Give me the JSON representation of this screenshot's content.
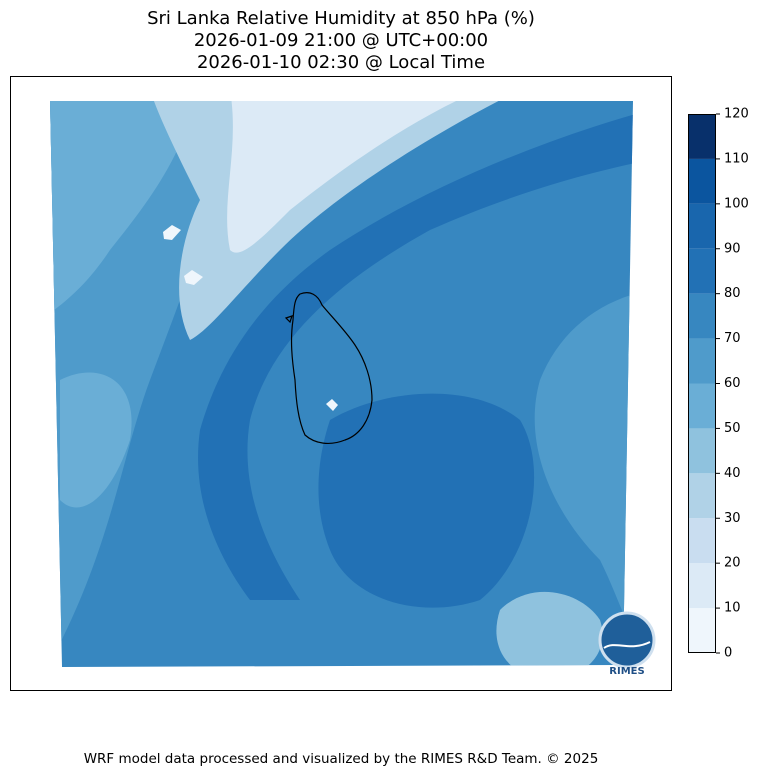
{
  "title": [
    "Sri Lanka Relative Humidity at 850 hPa (%)",
    "2026-01-09 21:00 @ UTC+00:00",
    "2026-01-10 02:30 @ Local Time"
  ],
  "colorbar": {
    "ticks": [
      0,
      10,
      20,
      30,
      40,
      50,
      60,
      70,
      80,
      90,
      100,
      110,
      120
    ],
    "colors": [
      "#eff6fc",
      "#dceaf6",
      "#c9ddf0",
      "#b0d2e7",
      "#8fc2de",
      "#6aaed6",
      "#4f9bcb",
      "#3787c0",
      "#2271b5",
      "#1966ad",
      "#0b559f",
      "#08306b"
    ]
  },
  "logo": "RIMES",
  "footer": "WRF model data processed and visualized by the RIMES R&D Team. © 2025"
}
